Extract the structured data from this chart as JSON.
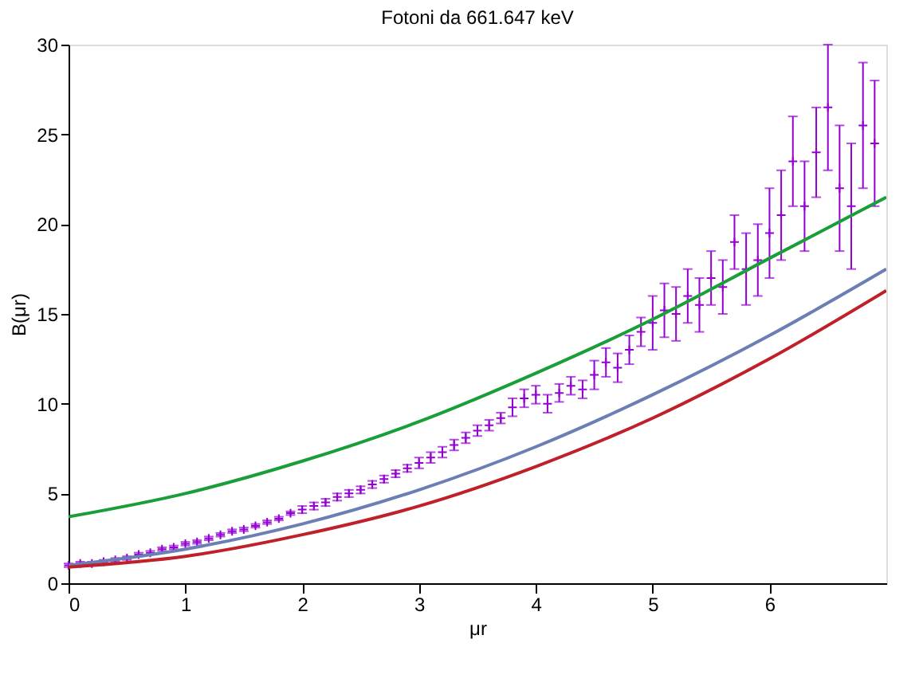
{
  "chart_data": {
    "type": "scatter",
    "title": "Fotoni da 661.647 keV",
    "xlabel": "μr",
    "ylabel": "B(μr)",
    "xlim": [
      0,
      7
    ],
    "ylim": [
      0,
      30
    ],
    "xticks": [
      0,
      1,
      2,
      3,
      4,
      5,
      6
    ],
    "yticks": [
      0,
      5,
      10,
      15,
      20,
      25,
      30
    ],
    "grid": false,
    "series": [
      {
        "color": "#9400d3",
        "marker": "cross",
        "x": [
          0.0,
          0.1,
          0.2,
          0.3,
          0.4,
          0.5,
          0.6,
          0.7,
          0.8,
          0.9,
          1.0,
          1.1,
          1.2,
          1.3,
          1.4,
          1.5,
          1.6,
          1.7,
          1.8,
          1.9,
          2.0,
          2.1,
          2.2,
          2.3,
          2.4,
          2.5,
          2.6,
          2.7,
          2.8,
          2.9,
          3.0,
          3.1,
          3.2,
          3.3,
          3.4,
          3.5,
          3.6,
          3.7,
          3.8,
          3.9,
          4.0,
          4.1,
          4.2,
          4.3,
          4.4,
          4.5,
          4.6,
          4.7,
          4.8,
          4.9,
          5.0,
          5.1,
          5.2,
          5.3,
          5.4,
          5.5,
          5.6,
          5.7,
          5.8,
          5.9,
          6.0,
          6.1,
          6.2,
          6.3,
          6.4,
          6.5,
          6.6,
          6.7,
          6.8,
          6.9
        ],
        "values": [
          1.0,
          1.1,
          1.1,
          1.2,
          1.3,
          1.4,
          1.6,
          1.7,
          1.9,
          2.0,
          2.2,
          2.3,
          2.5,
          2.7,
          2.9,
          3.0,
          3.2,
          3.4,
          3.6,
          3.9,
          4.1,
          4.3,
          4.5,
          4.8,
          5.0,
          5.2,
          5.5,
          5.8,
          6.1,
          6.4,
          6.7,
          7.0,
          7.3,
          7.7,
          8.1,
          8.5,
          8.8,
          9.2,
          9.8,
          10.3,
          10.5,
          10.0,
          10.6,
          11.0,
          10.8,
          11.6,
          12.3,
          12.0,
          13.0,
          14.0,
          14.5,
          15.2,
          15.0,
          16.0,
          15.5,
          17.0,
          16.5,
          19.0,
          17.5,
          18.0,
          19.5,
          20.5,
          23.5,
          21.0,
          24.0,
          26.5,
          22.0,
          21.0,
          25.5,
          24.5
        ],
        "errors": [
          0.1,
          0.1,
          0.1,
          0.1,
          0.1,
          0.1,
          0.1,
          0.1,
          0.1,
          0.1,
          0.1,
          0.1,
          0.1,
          0.1,
          0.1,
          0.1,
          0.1,
          0.1,
          0.1,
          0.1,
          0.2,
          0.2,
          0.2,
          0.2,
          0.2,
          0.2,
          0.2,
          0.2,
          0.2,
          0.2,
          0.3,
          0.3,
          0.3,
          0.3,
          0.3,
          0.3,
          0.3,
          0.3,
          0.5,
          0.5,
          0.5,
          0.5,
          0.5,
          0.5,
          0.5,
          0.8,
          0.8,
          0.8,
          0.8,
          0.8,
          1.5,
          1.5,
          1.5,
          1.5,
          1.5,
          1.5,
          1.5,
          1.5,
          2.0,
          2.0,
          2.5,
          2.5,
          2.5,
          2.5,
          2.5,
          3.5,
          3.5,
          3.5,
          3.5,
          3.5
        ]
      },
      {
        "type": "line",
        "color": "#1a9e3a",
        "x": [
          0,
          1,
          2,
          3,
          4,
          5,
          6,
          7
        ],
        "values": [
          3.7,
          5.0,
          6.8,
          9.0,
          11.7,
          14.7,
          18.1,
          21.5
        ]
      },
      {
        "type": "line",
        "color": "#6b7fb5",
        "x": [
          0,
          1,
          2,
          3,
          4,
          5,
          6,
          7
        ],
        "values": [
          1.0,
          1.9,
          3.3,
          5.2,
          7.6,
          10.5,
          13.8,
          17.5
        ]
      },
      {
        "type": "line",
        "color": "#c0202a",
        "x": [
          0,
          1,
          2,
          3,
          4,
          5,
          6,
          7
        ],
        "values": [
          0.9,
          1.5,
          2.7,
          4.3,
          6.5,
          9.2,
          12.5,
          16.3
        ]
      }
    ]
  }
}
